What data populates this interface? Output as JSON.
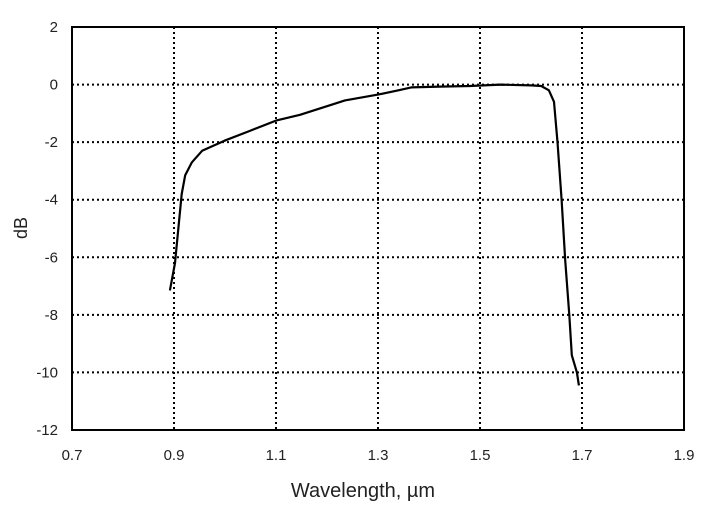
{
  "chart_data": {
    "type": "line",
    "title": "",
    "xlabel": "Wavelength, µm",
    "ylabel": "dB",
    "xlim": [
      0.7,
      1.9
    ],
    "ylim": [
      -12,
      2
    ],
    "xticks": [
      "0.7",
      "0.9",
      "1.1",
      "1.3",
      "1.5",
      "1.7",
      "1.9"
    ],
    "yticks": [
      "2",
      "0",
      "-2",
      "-4",
      "-6",
      "-8",
      "-10",
      "-12"
    ],
    "grid": true,
    "grid_style": "dotted",
    "line_color": "#000000",
    "series": [
      {
        "x": [
          0.892,
          0.902,
          0.915,
          0.922,
          0.935,
          0.955,
          0.999,
          1.05,
          1.1,
          1.147,
          1.2,
          1.235,
          1.3,
          1.34,
          1.365,
          1.42,
          1.48,
          1.54,
          1.6,
          1.62,
          1.635,
          1.645,
          1.652,
          1.66,
          1.667,
          1.675,
          1.68,
          1.69,
          1.694
        ],
        "y": [
          -7.15,
          -6.2,
          -3.8,
          -3.15,
          -2.7,
          -2.3,
          -1.95,
          -1.6,
          -1.25,
          -1.05,
          -0.75,
          -0.55,
          -0.35,
          -0.2,
          -0.1,
          -0.07,
          -0.05,
          0,
          -0.03,
          -0.05,
          -0.2,
          -0.6,
          -2.0,
          -4.0,
          -6.1,
          -8.0,
          -9.4,
          -10.0,
          -10.45
        ]
      }
    ]
  }
}
